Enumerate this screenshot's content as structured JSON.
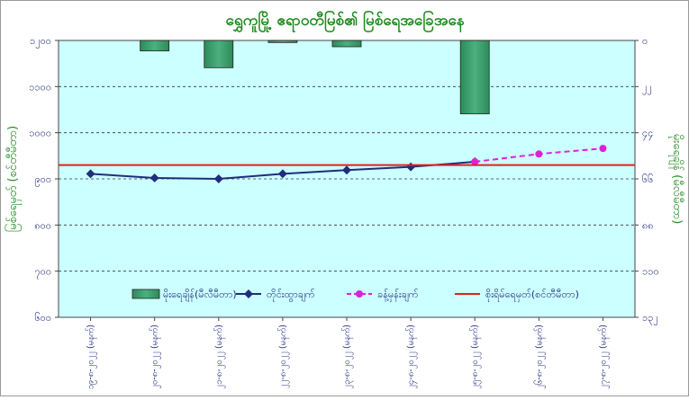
{
  "chart_data": {
    "type": "bar+line",
    "title": "ရွှေကူမြို့ ဧရာဝတီမြစ်၏ မြစ်ရေအခြေအနေ",
    "ylabel_left": "မြစ်ရေမှတ် (စင်တီမီတာ)",
    "ylabel_right": "မိုးရေချိန် (မီလီမီတာ)",
    "ylim_left": [
      600,
      1200
    ],
    "ylim_right": [
      0,
      132
    ],
    "left_ticks": [
      "၆၀၀",
      "၇၀၀",
      "၈၀၀",
      "၉၀၀",
      "၁၀၀၀",
      "၁၁၀၀",
      "၁၂၀၀"
    ],
    "right_ticks": [
      "၁၃၂",
      "၁၁၀",
      "၈၈",
      "၆၆",
      "၄၄",
      "၂၂",
      "၀"
    ],
    "categories": [
      "၁၉-၈-၂၀၂၂ (မနက်)",
      "၂၀-၈-၂၀၂၂ (မနက်)",
      "၂၁-၈-၂၀၂၂ (မနက်)",
      "၂၂-၈-၂၀၂၂ (မနက်)",
      "၂၃-၈-၂၀၂၂ (မနက်)",
      "၂၄-၈-၂၀၂၂ (မနက်)",
      "၂၅-၈-၂၀၂၂ (မနက်)",
      "၂၆-၈-၂၀၂၂ (မနက်)",
      "၂၇-၈-၂၀၂၂ (မနက်)"
    ],
    "series": [
      {
        "name": "မိုးရေချိန်(မီလီမီတာ)",
        "kind": "bar",
        "axis": "right",
        "color": "#3c9a6a",
        "values": [
          null,
          5,
          13,
          1,
          3,
          null,
          35,
          null,
          null
        ]
      },
      {
        "name": "တိုင်းထွာချက်",
        "kind": "line",
        "axis": "left",
        "color": "#1f2d7a",
        "values": [
          911,
          902,
          900,
          911,
          919,
          926,
          937,
          null,
          null
        ]
      },
      {
        "name": "ခန့်မှန်းချက်",
        "kind": "dashed-line",
        "axis": "left",
        "color": "#e020d8",
        "values": [
          null,
          null,
          null,
          null,
          null,
          null,
          937,
          954,
          966
        ]
      },
      {
        "name": "စိုးရိမ်ရေမှတ်(စင်တီမီတာ)",
        "kind": "hline",
        "axis": "left",
        "color": "#e02020",
        "value": 930
      }
    ],
    "legend_position": "bottom-inside",
    "grid": "horizontal-dashed"
  }
}
